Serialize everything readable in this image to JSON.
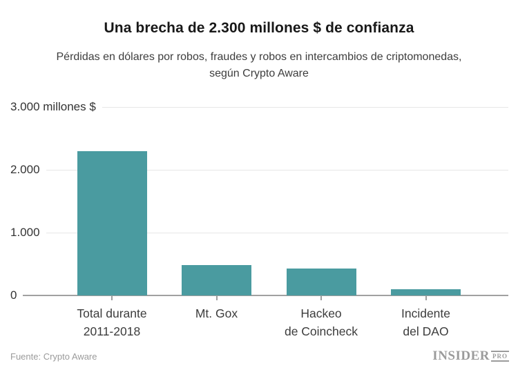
{
  "header": {
    "title": "Una brecha de 2.300 millones $ de confianza",
    "subtitle": "Pérdidas en dólares por robos, fraudes y robos en intercambios de criptomonedas,\nsegún Crypto Aware"
  },
  "chart_data": {
    "type": "bar",
    "title": "Una brecha de 2.300 millones $ de confianza",
    "subtitle": "Pérdidas en dólares por robos, fraudes y robos en intercambios de criptomonedas, según Crypto Aware",
    "unit": "millones $",
    "categories": [
      "Total durante\n2011-2018",
      "Mt. Gox",
      "Hackeo\nde Coincheck",
      "Incidente\ndel DAO"
    ],
    "values": [
      2300,
      480,
      430,
      100
    ],
    "ylim": [
      0,
      3000
    ],
    "y_ticks": [
      {
        "value": 3000,
        "label": "3.000 millones $"
      },
      {
        "value": 2000,
        "label": "2.000"
      },
      {
        "value": 1000,
        "label": "1.000"
      },
      {
        "value": 0,
        "label": "0"
      }
    ],
    "grid": true,
    "legend": false,
    "bar_color": "#4a9ba0",
    "gridline_color": "#e7e7e7",
    "axis_line_color": "#a0a0a0",
    "text_color": "#333333"
  },
  "footer": {
    "source": "Fuente: Crypto Aware",
    "logo_main": "INSIDER",
    "logo_sub": "PRO"
  }
}
